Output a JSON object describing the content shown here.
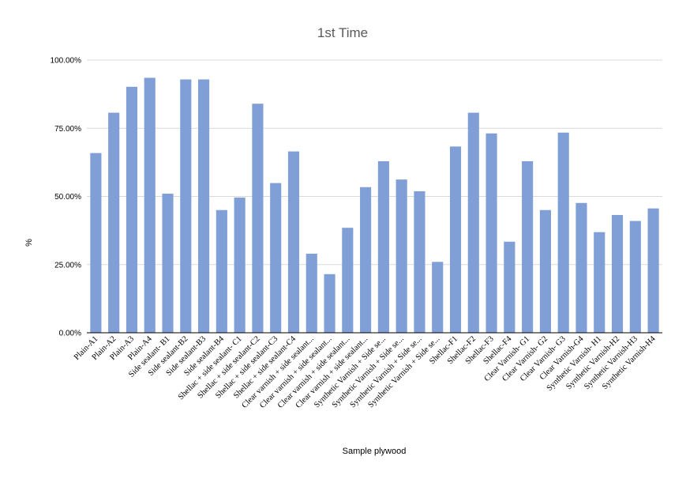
{
  "chart_data": {
    "type": "bar",
    "title": "1st Time",
    "xlabel": "Sample plywood",
    "ylabel": "%",
    "ylim": [
      0,
      100
    ],
    "yticks": [
      "0.00%",
      "25.00%",
      "50.00%",
      "75.00%",
      "100.00%"
    ],
    "grid": true,
    "legend": "none",
    "bar_color": "#7f9fd6",
    "categories": [
      "Plain-A1",
      "Plain-A2",
      "Plain-A3",
      "Plain-A4",
      "Side sealant- B1",
      "Side sealant-B2",
      "Side sealant-B3",
      "Side sealant-B4",
      "Shellac + side sealant- C1",
      "Shellac + side sealant-C2",
      "Shellac + side sealant-C3",
      "Shellac + side sealant-C4",
      "Clear varnish + side sealant...",
      "Clear varnish + side sealant...",
      "Clear varnish + side sealant...",
      "Clear varnish + side sealant...",
      "Synthetic Varnish + Side se...",
      "Synthetic Varnish + Side se...",
      "Synthetic Varnish + Side se...",
      "Synthetic Varnish + Side se...",
      "Shellac-F1",
      "Shellac-F2",
      "Shellac-F3",
      "Shellac-F4",
      "Clear Varnish- G1",
      "Clear Varnish- G2",
      "Clear Varnish- G3",
      "Clear Varnish-G4",
      "Synthetic Varnish- H1",
      "Synthetic Varnish-H2",
      "Synthetic Varnish-H3",
      "Synthetic Varnish-H4"
    ],
    "values": [
      65.9,
      80.7,
      90.2,
      93.5,
      51.0,
      92.9,
      92.9,
      45.0,
      49.6,
      84.0,
      54.9,
      66.5,
      29.0,
      21.5,
      38.5,
      53.4,
      62.9,
      56.2,
      51.9,
      26.0,
      68.3,
      80.7,
      73.1,
      33.4,
      62.9,
      45.0,
      73.4,
      47.6,
      36.9,
      43.2,
      41.0,
      45.6
    ]
  }
}
